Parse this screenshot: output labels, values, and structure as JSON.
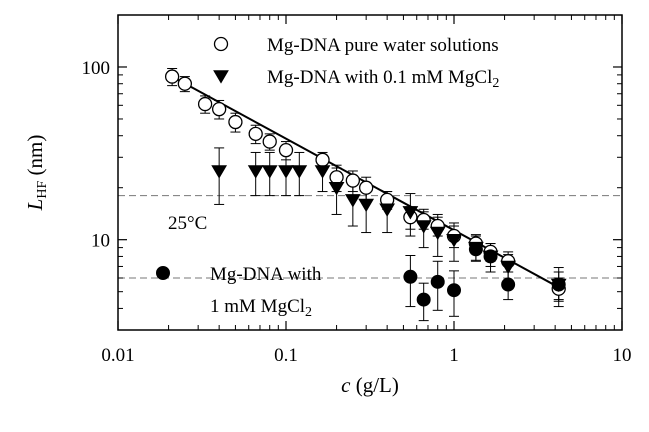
{
  "chart_data": {
    "type": "scatter",
    "title": "",
    "xlabel": {
      "italic": "c",
      "rest": " (g/L)"
    },
    "ylabel": {
      "italic": "L",
      "sub": "HF",
      "rest": " (nm)"
    },
    "xscale": "log",
    "yscale": "log",
    "xlim": [
      0.01,
      10
    ],
    "ylim": [
      3,
      200
    ],
    "x_ticks": [
      {
        "value": 0.01,
        "label": "0.01"
      },
      {
        "value": 0.1,
        "label": "0.1"
      },
      {
        "value": 1,
        "label": "1"
      },
      {
        "value": 10,
        "label": "10"
      }
    ],
    "y_ticks": [
      {
        "value": 10,
        "label": "10"
      },
      {
        "value": 100,
        "label": "100"
      }
    ],
    "annotation": "25°C",
    "series": [
      {
        "name": "Mg-DNA pure water solutions",
        "legend": {
          "text": "Mg-DNA pure water solutions",
          "sub": ""
        },
        "marker": "open-circle",
        "points": [
          {
            "x": 0.021,
            "y": 88,
            "err": 10
          },
          {
            "x": 0.025,
            "y": 80,
            "err": 8
          },
          {
            "x": 0.033,
            "y": 61,
            "err": 7
          },
          {
            "x": 0.04,
            "y": 57,
            "err": 7
          },
          {
            "x": 0.05,
            "y": 48,
            "err": 6
          },
          {
            "x": 0.066,
            "y": 41,
            "err": 5
          },
          {
            "x": 0.08,
            "y": 37,
            "err": 4
          },
          {
            "x": 0.1,
            "y": 33,
            "err": 4
          },
          {
            "x": 0.165,
            "y": 29,
            "err": 3
          },
          {
            "x": 0.2,
            "y": 23,
            "err": 4
          },
          {
            "x": 0.25,
            "y": 22,
            "err": 3
          },
          {
            "x": 0.3,
            "y": 20,
            "err": 3
          },
          {
            "x": 0.4,
            "y": 17,
            "err": 2
          },
          {
            "x": 0.55,
            "y": 13.5,
            "err": 2
          },
          {
            "x": 0.66,
            "y": 13,
            "err": 1.5
          },
          {
            "x": 0.8,
            "y": 12,
            "err": 1.5
          },
          {
            "x": 1.0,
            "y": 10.5,
            "err": 1.5
          },
          {
            "x": 1.35,
            "y": 9.5,
            "err": 1.2
          },
          {
            "x": 1.65,
            "y": 8.5,
            "err": 1
          },
          {
            "x": 2.1,
            "y": 7.5,
            "err": 1
          },
          {
            "x": 4.2,
            "y": 5.2,
            "err": 0.8
          }
        ]
      },
      {
        "name": "Mg-DNA with 0.1 mM MgCl2",
        "legend": {
          "text": "Mg-DNA with 0.1 mM MgCl",
          "sub": "2"
        },
        "marker": "filled-triangle-down",
        "points": [
          {
            "x": 0.04,
            "y": 25,
            "err": 9
          },
          {
            "x": 0.066,
            "y": 25,
            "err": 7
          },
          {
            "x": 0.08,
            "y": 25,
            "err": 7
          },
          {
            "x": 0.1,
            "y": 25,
            "err": 7
          },
          {
            "x": 0.12,
            "y": 25,
            "err": 7
          },
          {
            "x": 0.165,
            "y": 25,
            "err": 6
          },
          {
            "x": 0.2,
            "y": 20,
            "err": 6
          },
          {
            "x": 0.25,
            "y": 17,
            "err": 5
          },
          {
            "x": 0.3,
            "y": 16,
            "err": 5
          },
          {
            "x": 0.4,
            "y": 15,
            "err": 4
          },
          {
            "x": 0.55,
            "y": 14.5,
            "err": 4
          },
          {
            "x": 0.66,
            "y": 12,
            "err": 3
          },
          {
            "x": 0.8,
            "y": 11,
            "err": 3
          },
          {
            "x": 1.0,
            "y": 10,
            "err": 2.5
          },
          {
            "x": 1.35,
            "y": 9,
            "err": 1.5
          },
          {
            "x": 1.65,
            "y": 8,
            "err": 1.5
          },
          {
            "x": 2.1,
            "y": 7,
            "err": 1.2
          },
          {
            "x": 4.2,
            "y": 5.5,
            "err": 1
          }
        ]
      },
      {
        "name": "Mg-DNA with 1 mM MgCl2",
        "legend": {
          "text": "Mg-DNA with",
          "line2": "1 mM MgCl",
          "sub": "2"
        },
        "marker": "filled-circle",
        "points": [
          {
            "x": 0.55,
            "y": 6.1,
            "err": 2
          },
          {
            "x": 0.66,
            "y": 4.5,
            "err": 1.1
          },
          {
            "x": 0.8,
            "y": 5.7,
            "err": 1.8
          },
          {
            "x": 1.0,
            "y": 5.1,
            "err": 1.5
          },
          {
            "x": 1.35,
            "y": 8.8,
            "err": 1.2
          },
          {
            "x": 1.65,
            "y": 8.0,
            "err": 1
          },
          {
            "x": 2.1,
            "y": 5.5,
            "err": 1
          },
          {
            "x": 4.2,
            "y": 5.5,
            "err": 1.4
          }
        ]
      }
    ],
    "fit_line": {
      "from": {
        "x": 0.021,
        "y": 88
      },
      "to": {
        "x": 4.2,
        "y": 5.3
      }
    },
    "reference_lines": [
      {
        "orientation": "horizontal",
        "y": 18,
        "style": "dashed"
      },
      {
        "orientation": "horizontal",
        "y": 6,
        "style": "dashed"
      }
    ]
  }
}
